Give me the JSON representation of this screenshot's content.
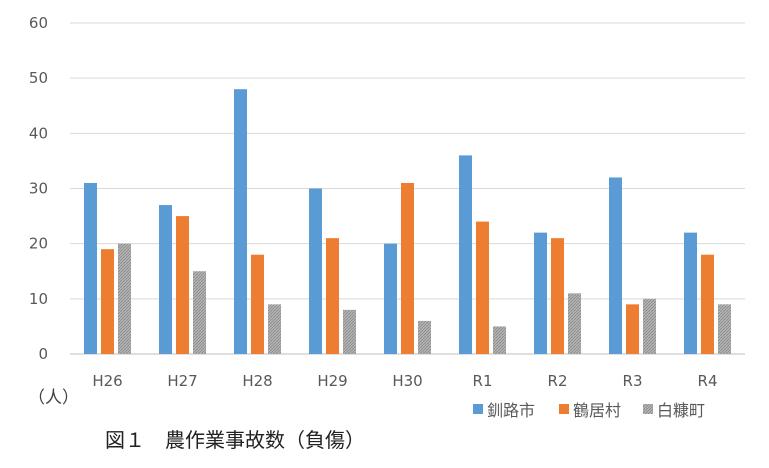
{
  "chart_data": {
    "type": "bar",
    "title": "図１　農作業事故数（負傷）",
    "ylabel": "（人）",
    "xlabel": "",
    "ylim": [
      0,
      60
    ],
    "yticks": [
      "0",
      "10",
      "20",
      "30",
      "40",
      "50",
      "60"
    ],
    "categories": [
      "H26",
      "H27",
      "H28",
      "H29",
      "H30",
      "R1",
      "R2",
      "R3",
      "R4"
    ],
    "series": [
      {
        "name": "釧路市",
        "color": "#5B9BD5",
        "values": [
          31,
          27,
          48,
          30,
          20,
          36,
          22,
          32,
          22
        ]
      },
      {
        "name": "鶴居村",
        "color": "#ED7D31",
        "values": [
          19,
          25,
          18,
          21,
          31,
          24,
          21,
          9,
          18
        ]
      },
      {
        "name": "白糠町",
        "color": "#A5A5A5",
        "values": [
          20,
          15,
          9,
          8,
          6,
          5,
          11,
          10,
          9
        ]
      }
    ],
    "grid": true,
    "legend_position": "bottom-right"
  }
}
